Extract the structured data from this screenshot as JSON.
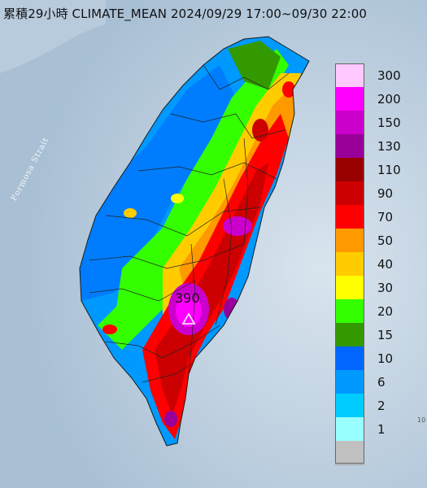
{
  "title": "累積29小時 CLIMATE_MEAN 2024/09/29 17:00~09/30 22:00",
  "water_label": "Formosa Strait",
  "peak": {
    "value": "390"
  },
  "edge_note": "10",
  "legend": {
    "entries": [
      {
        "label": "300",
        "color": "#ffc8ff"
      },
      {
        "label": "200",
        "color": "#ff00ff"
      },
      {
        "label": "150",
        "color": "#cc00cc"
      },
      {
        "label": "130",
        "color": "#990099"
      },
      {
        "label": "110",
        "color": "#990000"
      },
      {
        "label": "90",
        "color": "#cc0000"
      },
      {
        "label": "70",
        "color": "#ff0000"
      },
      {
        "label": "50",
        "color": "#ff9900"
      },
      {
        "label": "40",
        "color": "#ffcc00"
      },
      {
        "label": "30",
        "color": "#ffff00"
      },
      {
        "label": "20",
        "color": "#33ff00"
      },
      {
        "label": "15",
        "color": "#339900"
      },
      {
        "label": "10",
        "color": "#0066ff"
      },
      {
        "label": "6",
        "color": "#0099ff"
      },
      {
        "label": "2",
        "color": "#00ccff"
      },
      {
        "label": "1",
        "color": "#99ffff"
      },
      {
        "label": "",
        "color": "#c0c0c0"
      }
    ]
  },
  "colors": {
    "sea": "#b9cddd",
    "border_lines": "#222222"
  }
}
